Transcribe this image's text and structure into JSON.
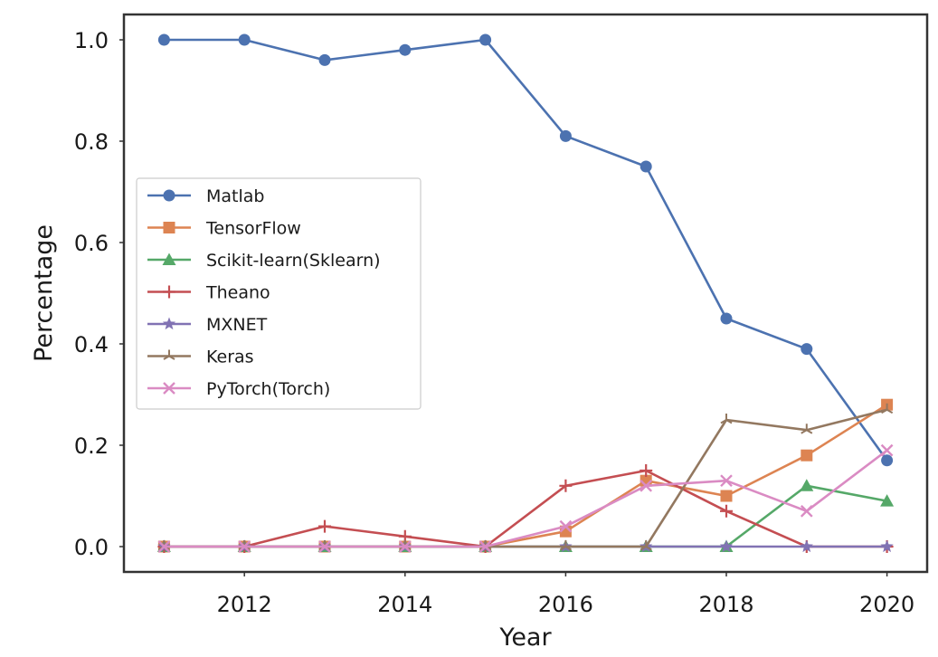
{
  "chart_data": {
    "type": "line",
    "title": "",
    "xlabel": "Year",
    "ylabel": "Percentage",
    "xlim": [
      2010.5,
      2020.5
    ],
    "ylim": [
      -0.05,
      1.05
    ],
    "xticks": [
      2012,
      2014,
      2016,
      2018,
      2020
    ],
    "xtick_labels": [
      "2012",
      "2014",
      "2016",
      "2018",
      "2020"
    ],
    "yticks": [
      0.0,
      0.2,
      0.4,
      0.6,
      0.8,
      1.0
    ],
    "ytick_labels": [
      "0.0",
      "0.2",
      "0.4",
      "0.6",
      "0.8",
      "1.0"
    ],
    "grid": false,
    "legend": "center-left",
    "x": [
      2011,
      2012,
      2013,
      2014,
      2015,
      2016,
      2017,
      2018,
      2019,
      2020
    ],
    "series": [
      {
        "name": "Matlab",
        "color": "#4c72b0",
        "marker": "circle",
        "values": [
          1.0,
          1.0,
          0.96,
          0.98,
          1.0,
          0.81,
          0.75,
          0.45,
          0.39,
          0.17
        ]
      },
      {
        "name": "TensorFlow",
        "color": "#dd8452",
        "marker": "square",
        "values": [
          0.0,
          0.0,
          0.0,
          0.0,
          0.0,
          0.03,
          0.13,
          0.1,
          0.18,
          0.28
        ]
      },
      {
        "name": "Scikit-learn(Sklearn)",
        "color": "#55a868",
        "marker": "triangle",
        "values": [
          0.0,
          0.0,
          0.0,
          0.0,
          0.0,
          0.0,
          0.0,
          0.0,
          0.12,
          0.09
        ]
      },
      {
        "name": "Theano",
        "color": "#c44e52",
        "marker": "plus",
        "values": [
          0.0,
          0.0,
          0.04,
          0.02,
          0.0,
          0.12,
          0.15,
          0.07,
          0.0,
          0.0
        ]
      },
      {
        "name": "MXNET",
        "color": "#8172b3",
        "marker": "star",
        "values": [
          0.0,
          0.0,
          0.0,
          0.0,
          0.0,
          0.0,
          0.0,
          0.0,
          0.0,
          0.0
        ]
      },
      {
        "name": "Keras",
        "color": "#937860",
        "marker": "tri",
        "values": [
          0.0,
          0.0,
          0.0,
          0.0,
          0.0,
          0.0,
          0.0,
          0.25,
          0.23,
          0.27
        ]
      },
      {
        "name": "PyTorch(Torch)",
        "color": "#da8bc3",
        "marker": "x",
        "values": [
          0.0,
          0.0,
          0.0,
          0.0,
          0.0,
          0.04,
          0.12,
          0.13,
          0.07,
          0.19
        ]
      }
    ]
  }
}
